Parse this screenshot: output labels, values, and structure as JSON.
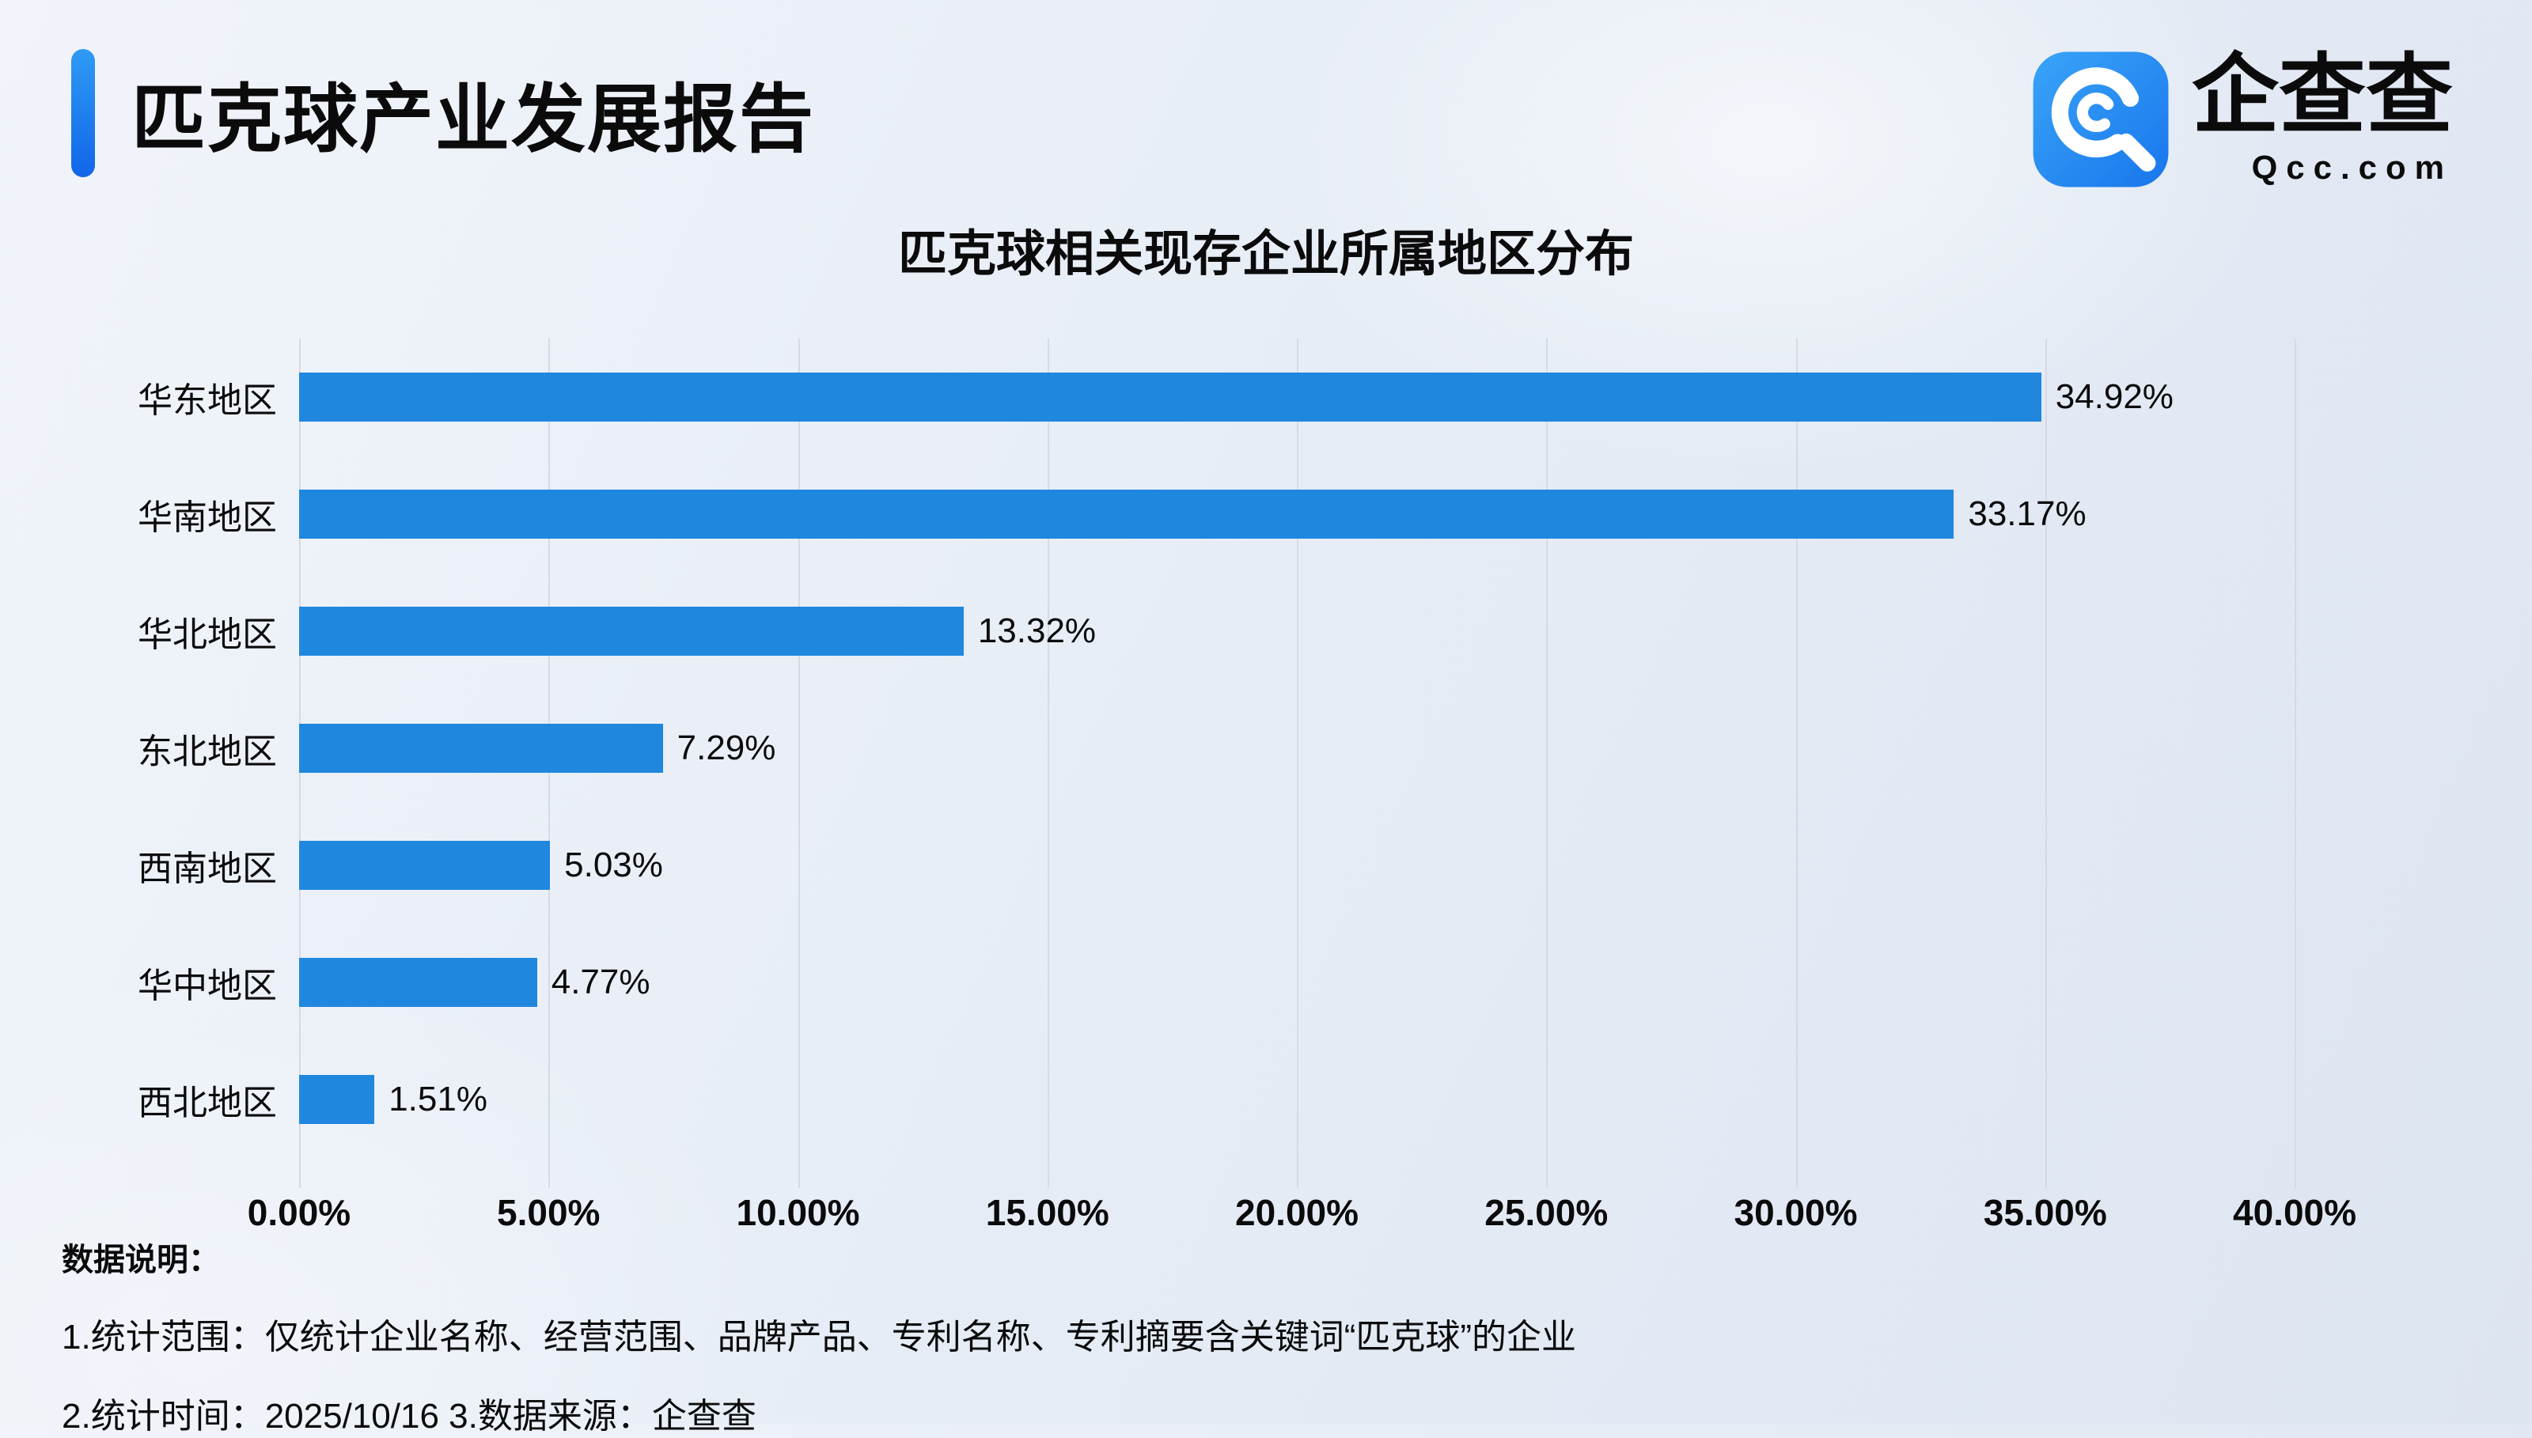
{
  "header": {
    "title": "匹克球产业发展报告"
  },
  "logo": {
    "brand": "企查查",
    "site": "Qcc.com"
  },
  "colors": {
    "accent_top": "#2F9BF5",
    "accent_bottom": "#1166E8",
    "logo_blue": "#2B8FF0"
  },
  "chart_data": {
    "type": "bar",
    "orientation": "horizontal",
    "title": "匹克球相关现存企业所属地区分布",
    "categories": [
      "华东地区",
      "华南地区",
      "华北地区",
      "东北地区",
      "西南地区",
      "华中地区",
      "西北地区"
    ],
    "values": [
      34.92,
      33.17,
      13.32,
      7.29,
      5.03,
      4.77,
      1.51
    ],
    "value_labels": [
      "34.92%",
      "33.17%",
      "13.32%",
      "7.29%",
      "5.03%",
      "4.77%",
      "1.51%"
    ],
    "xlim": [
      0,
      40
    ],
    "x_ticks": [
      "0.00%",
      "5.00%",
      "10.00%",
      "15.00%",
      "20.00%",
      "25.00%",
      "30.00%",
      "35.00%",
      "40.00%"
    ],
    "bar_color": "#2087DF",
    "grid": true,
    "legend": "none"
  },
  "footer": {
    "heading": "数据说明：",
    "notes": [
      "1.统计范围：仅统计企业名称、经营范围、品牌产品、专利名称、专利摘要含关键词“匹克球”的企业",
      "2.统计时间：2025/10/16 3.数据来源：企查查"
    ]
  }
}
